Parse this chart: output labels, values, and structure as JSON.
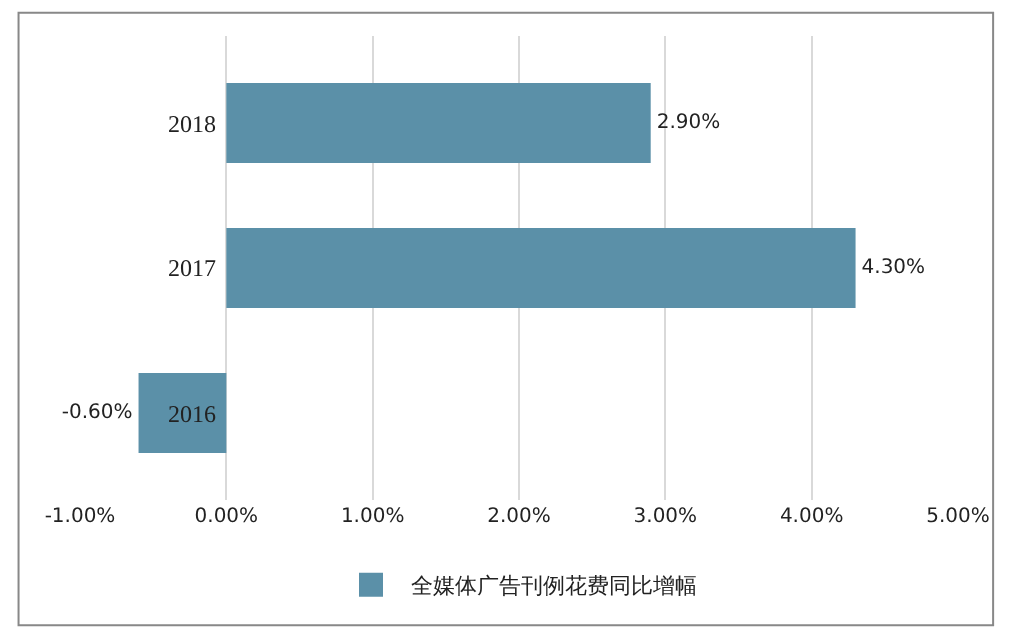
{
  "chart_data": {
    "type": "bar",
    "orientation": "horizontal",
    "categories": [
      "2018",
      "2017",
      "2016"
    ],
    "series": [
      {
        "name": "全媒体广告刊例花费同比增幅",
        "color": "#5b90a8",
        "values": [
          2.9,
          4.3,
          -0.6
        ],
        "value_labels": [
          "2.90%",
          "4.30%",
          "-0.60%"
        ]
      }
    ],
    "xlim": [
      -1,
      5
    ],
    "xticks": [
      {
        "value": -1,
        "label": "-1.00%"
      },
      {
        "value": 0,
        "label": "0.00%"
      },
      {
        "value": 1,
        "label": "1.00%"
      },
      {
        "value": 2,
        "label": "2.00%"
      },
      {
        "value": 3,
        "label": "3.00%"
      },
      {
        "value": 4,
        "label": "4.00%"
      },
      {
        "value": 5,
        "label": "5.00%"
      }
    ],
    "grid": "x",
    "legend": "bottom"
  }
}
